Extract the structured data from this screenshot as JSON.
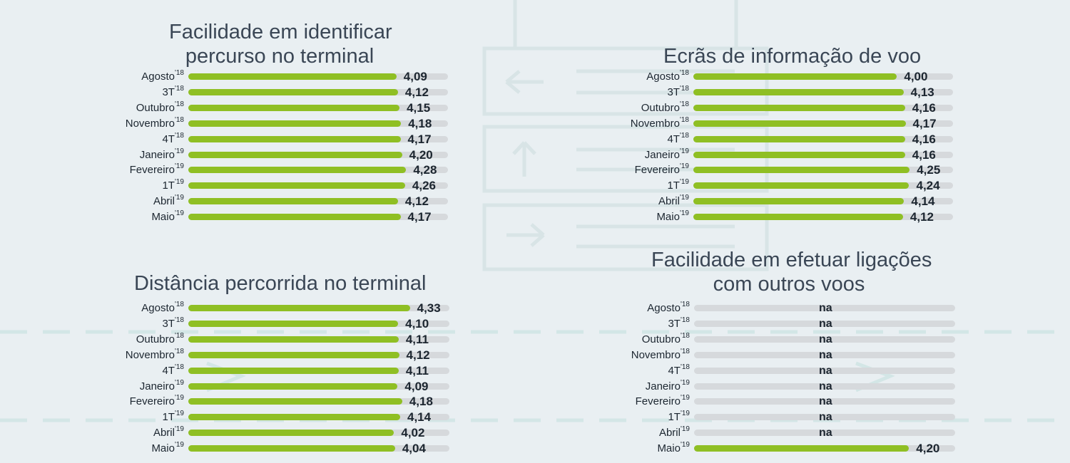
{
  "colors": {
    "bar": "#8fbf24",
    "track": "#d6d9dc",
    "background": "#e9eff2",
    "text": "#1c2630",
    "title": "#3a4655"
  },
  "chart_data": [
    {
      "type": "bar",
      "orientation": "horizontal",
      "title": "Facilidade em identificar percurso no terminal",
      "title_lines": [
        "Facilidade em identificar",
        "percurso no terminal"
      ],
      "categories": [
        "Agosto",
        "3T",
        "Outubro",
        "Novembro",
        "4T",
        "Janeiro",
        "Fevereiro",
        "1T",
        "Abril",
        "Maio"
      ],
      "years": [
        "'18",
        "'18",
        "'18",
        "'18",
        "'18",
        "'19",
        "'19",
        "'19",
        "'19",
        "'19"
      ],
      "values": [
        4.09,
        4.12,
        4.15,
        4.18,
        4.17,
        4.2,
        4.28,
        4.26,
        4.12,
        4.17
      ],
      "labels": [
        "4,09",
        "4,12",
        "4,15",
        "4,18",
        "4,17",
        "4,20",
        "4,28",
        "4,26",
        "4,12",
        "4,17"
      ],
      "xlim": [
        0,
        5
      ]
    },
    {
      "type": "bar",
      "orientation": "horizontal",
      "title": "Ecrãs de informação de voo",
      "title_lines": [
        "Ecrãs de informação de voo"
      ],
      "categories": [
        "Agosto",
        "3T",
        "Outubro",
        "Novembro",
        "4T",
        "Janeiro",
        "Fevereiro",
        "1T",
        "Abril",
        "Maio"
      ],
      "years": [
        "'18",
        "'18",
        "'18",
        "'18",
        "'18",
        "'19",
        "'19",
        "'19",
        "'19",
        "'19"
      ],
      "values": [
        4.0,
        4.13,
        4.16,
        4.17,
        4.16,
        4.16,
        4.25,
        4.24,
        4.14,
        4.12
      ],
      "labels": [
        "4,00",
        "4,13",
        "4,16",
        "4,17",
        "4,16",
        "4,16",
        "4,25",
        "4,24",
        "4,14",
        "4,12"
      ],
      "xlim": [
        0,
        5
      ]
    },
    {
      "type": "bar",
      "orientation": "horizontal",
      "title": "Distância percorrida no terminal",
      "title_lines": [
        "Distância percorrida no terminal"
      ],
      "categories": [
        "Agosto",
        "3T",
        "Outubro",
        "Novembro",
        "4T",
        "Janeiro",
        "Fevereiro",
        "1T",
        "Abril",
        "Maio"
      ],
      "years": [
        "'18",
        "'18",
        "'18",
        "'18",
        "'18",
        "'19",
        "'19",
        "'19",
        "'19",
        "'19"
      ],
      "values": [
        4.33,
        4.1,
        4.11,
        4.12,
        4.11,
        4.09,
        4.18,
        4.14,
        4.02,
        4.04
      ],
      "labels": [
        "4,33",
        "4,10",
        "4,11",
        "4,12",
        "4,11",
        "4,09",
        "4,18",
        "4,14",
        "4,02",
        "4,04"
      ],
      "xlim": [
        0,
        5
      ]
    },
    {
      "type": "bar",
      "orientation": "horizontal",
      "title": "Facilidade em efetuar ligações com outros voos",
      "title_lines": [
        "Facilidade em efetuar ligações",
        "com outros voos"
      ],
      "categories": [
        "Agosto",
        "3T",
        "Outubro",
        "Novembro",
        "4T",
        "Janeiro",
        "Fevereiro",
        "1T",
        "Abril",
        "Maio"
      ],
      "years": [
        "'18",
        "'18",
        "'18",
        "'18",
        "'18",
        "'19",
        "'19",
        "'19",
        "'19",
        "'19"
      ],
      "values": [
        null,
        null,
        null,
        null,
        null,
        null,
        null,
        null,
        null,
        4.2
      ],
      "labels": [
        "na",
        "na",
        "na",
        "na",
        "na",
        "na",
        "na",
        "na",
        "na",
        "4,20"
      ],
      "xlim": [
        0,
        5
      ]
    }
  ]
}
